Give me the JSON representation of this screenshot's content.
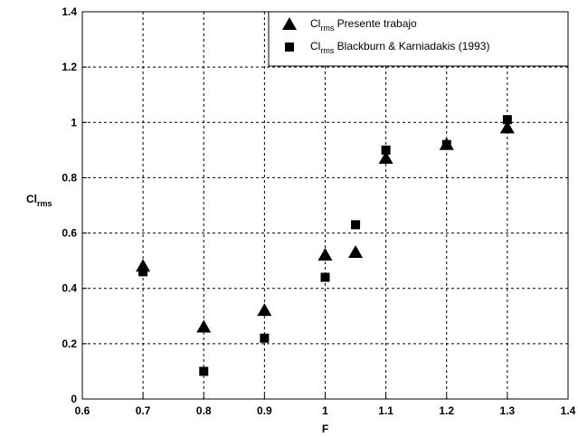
{
  "chart_data": {
    "type": "scatter",
    "xlabel": "F",
    "ylabel": {
      "main": "Cl",
      "sub": "rms"
    },
    "xlim": [
      0.6,
      1.4
    ],
    "ylim": [
      0,
      1.4
    ],
    "xticks": [
      "0.6",
      "0.7",
      "0.8",
      "0.9",
      "1",
      "1.1",
      "1.2",
      "1.3",
      "1.4"
    ],
    "yticks": [
      "0",
      "0.2",
      "0.4",
      "0.6",
      "0.8",
      "1",
      "1.2",
      "1.4"
    ],
    "grid": true,
    "legend_position": "top-right",
    "series": [
      {
        "marker": "triangle",
        "color": "#000000",
        "legend": {
          "main": "Cl",
          "sub": "rms",
          "rest": " Presente trabajo"
        },
        "points": [
          [
            0.7,
            0.48
          ],
          [
            0.8,
            0.26
          ],
          [
            0.9,
            0.32
          ],
          [
            1.0,
            0.52
          ],
          [
            1.05,
            0.53
          ],
          [
            1.1,
            0.87
          ],
          [
            1.2,
            0.92
          ],
          [
            1.3,
            0.98
          ]
        ]
      },
      {
        "marker": "square",
        "color": "#000000",
        "legend": {
          "main": "Cl",
          "sub": "rms",
          "rest": " Blackburn & Karniadakis (1993)"
        },
        "points": [
          [
            0.7,
            0.46
          ],
          [
            0.8,
            0.1
          ],
          [
            0.9,
            0.22
          ],
          [
            1.0,
            0.44
          ],
          [
            1.05,
            0.63
          ],
          [
            1.1,
            0.9
          ],
          [
            1.2,
            0.92
          ],
          [
            1.3,
            1.01
          ]
        ]
      }
    ]
  }
}
